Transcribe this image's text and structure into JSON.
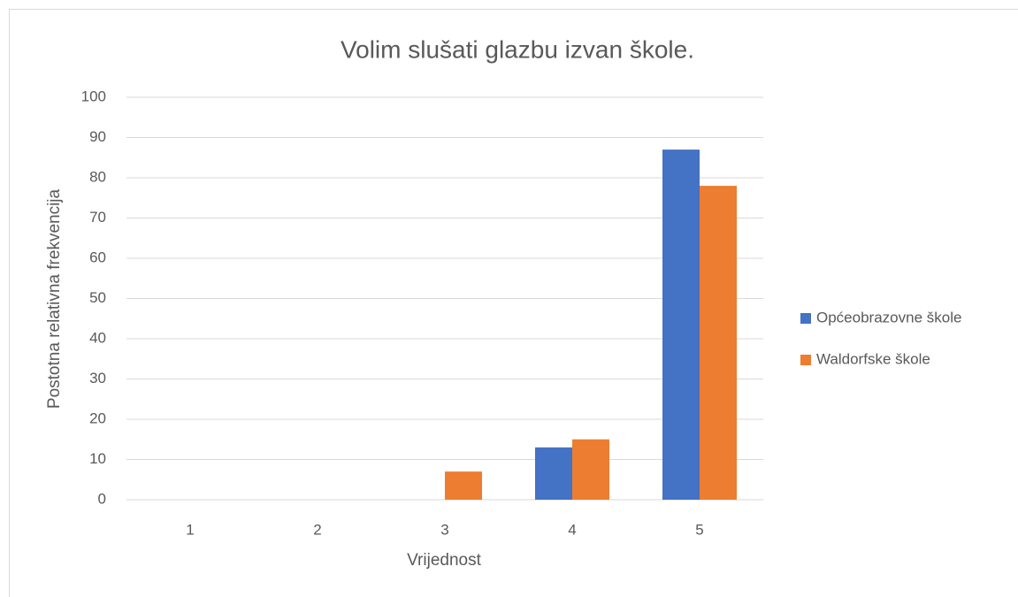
{
  "chart_data": {
    "type": "bar",
    "title": "Volim slušati glazbu izvan škole.",
    "x_label": "Vrijednost",
    "y_label": "Postotna relativna frekvencija",
    "categories": [
      "1",
      "2",
      "3",
      "4",
      "5"
    ],
    "series": [
      {
        "name": "Općeobrazovne škole",
        "color": "#4472c4",
        "values": [
          0,
          0,
          0,
          13,
          87
        ]
      },
      {
        "name": "Waldorfske škole",
        "color": "#ed7d31",
        "values": [
          0,
          0,
          7,
          15,
          78
        ]
      }
    ],
    "ylim": [
      0,
      100
    ],
    "yticks": [
      0,
      10,
      20,
      30,
      40,
      50,
      60,
      70,
      80,
      90,
      100
    ],
    "grid": true,
    "legend": "right"
  }
}
